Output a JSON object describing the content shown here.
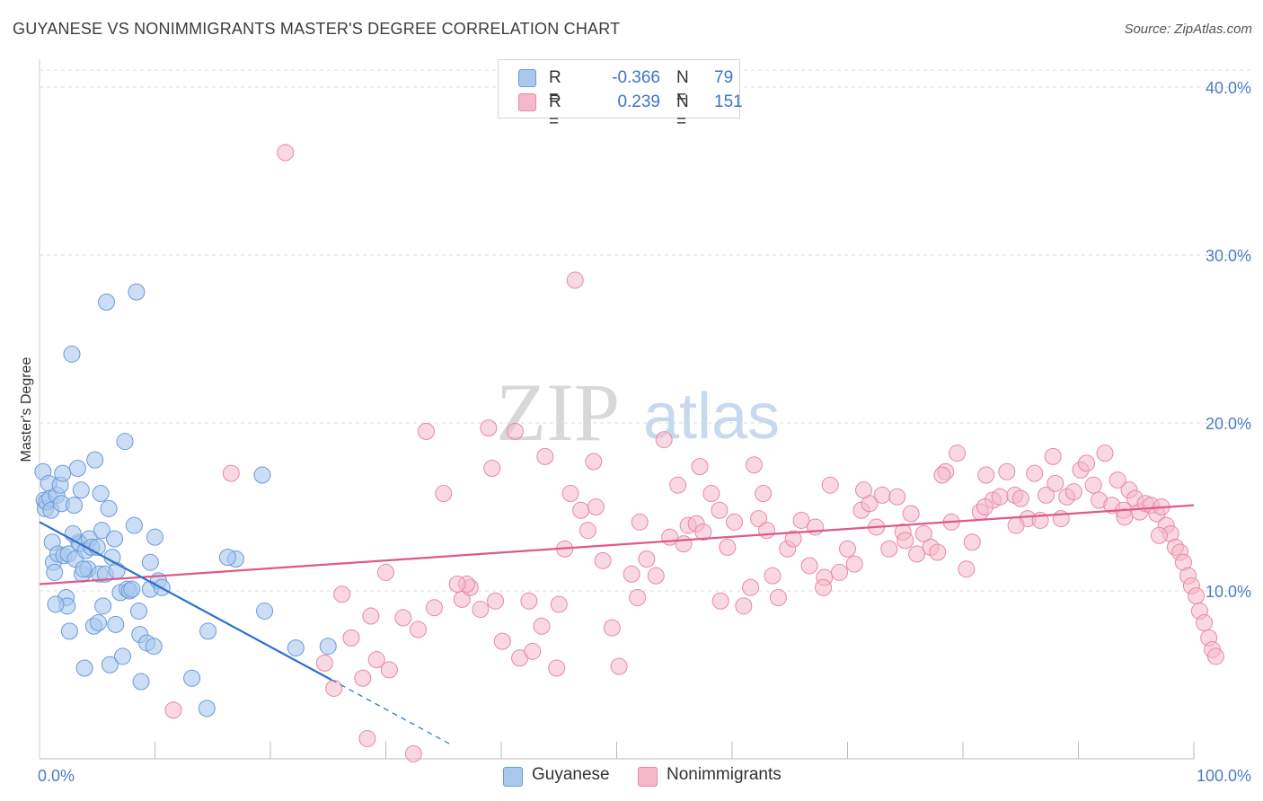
{
  "header": {
    "title": "GUYANESE VS NONIMMIGRANTS MASTER'S DEGREE CORRELATION CHART",
    "source": "Source: ZipAtlas.com"
  },
  "watermark": {
    "part1": "ZIP",
    "part2": "atlas"
  },
  "legend": {
    "rows": [
      {
        "r_label": "R =",
        "r_value": "-0.366",
        "n_label": "N =",
        "n_value": "79",
        "color": "#a9c8ee"
      },
      {
        "r_label": "R =",
        "r_value": "0.239",
        "n_label": "N =",
        "n_value": "151",
        "color": "#f6b8cb"
      }
    ]
  },
  "bottom_legend": [
    {
      "label": "Guyanese",
      "color": "#a9c8ee"
    },
    {
      "label": "Nonimmigrants",
      "color": "#f6b8cb"
    }
  ],
  "chart_data": {
    "type": "scatter",
    "ylabel": "Master's Degree",
    "xlim": [
      0,
      100
    ],
    "ylim": [
      0,
      40
    ],
    "x_tick_labels": [
      "0.0%",
      "100.0%"
    ],
    "y_ticks": [
      10,
      20,
      30,
      40
    ],
    "y_tick_labels": [
      "10.0%",
      "20.0%",
      "30.0%",
      "40.0%"
    ],
    "grid": true,
    "legend_position": "top-center",
    "colors": {
      "guyanese_fill": "#a9c8ee",
      "guyanese_stroke": "#6d9ad6",
      "guyanese_line": "#2e6fd0",
      "nonimm_fill": "#f6b8cb",
      "nonimm_stroke": "#e48aa8",
      "nonimm_line": "#e0588a"
    },
    "series": [
      {
        "name": "Guyanese",
        "trend": {
          "x": [
            0,
            25.3
          ],
          "y": [
            14.1,
            4.7
          ],
          "dash_to": [
            35.5,
            0.9
          ]
        },
        "points": [
          [
            0.3,
            17.1
          ],
          [
            0.4,
            15.4
          ],
          [
            0.5,
            14.9
          ],
          [
            0.6,
            15.3
          ],
          [
            0.8,
            16.4
          ],
          [
            0.9,
            15.5
          ],
          [
            1.0,
            14.8
          ],
          [
            1.1,
            12.9
          ],
          [
            1.2,
            11.7
          ],
          [
            1.3,
            11.1
          ],
          [
            1.5,
            15.7
          ],
          [
            1.6,
            12.2
          ],
          [
            1.8,
            16.3
          ],
          [
            1.9,
            15.2
          ],
          [
            2.0,
            17.0
          ],
          [
            2.1,
            12.1
          ],
          [
            2.3,
            9.6
          ],
          [
            2.4,
            9.1
          ],
          [
            2.5,
            12.2
          ],
          [
            2.6,
            7.6
          ],
          [
            2.8,
            24.1
          ],
          [
            3.0,
            15.1
          ],
          [
            3.1,
            11.9
          ],
          [
            3.3,
            17.3
          ],
          [
            3.4,
            12.9
          ],
          [
            3.5,
            12.8
          ],
          [
            3.6,
            16.0
          ],
          [
            3.7,
            11.0
          ],
          [
            3.9,
            5.4
          ],
          [
            4.0,
            12.4
          ],
          [
            4.2,
            11.3
          ],
          [
            4.3,
            13.1
          ],
          [
            4.5,
            12.6
          ],
          [
            4.7,
            7.9
          ],
          [
            4.8,
            17.8
          ],
          [
            5.0,
            12.6
          ],
          [
            5.1,
            8.1
          ],
          [
            5.2,
            11.0
          ],
          [
            5.4,
            13.6
          ],
          [
            5.5,
            9.1
          ],
          [
            5.7,
            11.0
          ],
          [
            5.8,
            27.2
          ],
          [
            6.0,
            14.9
          ],
          [
            6.1,
            5.6
          ],
          [
            6.3,
            12.0
          ],
          [
            6.5,
            13.1
          ],
          [
            6.7,
            11.2
          ],
          [
            7.0,
            9.9
          ],
          [
            7.2,
            6.1
          ],
          [
            7.4,
            18.9
          ],
          [
            7.6,
            10.1
          ],
          [
            7.8,
            10.0
          ],
          [
            8.0,
            10.1
          ],
          [
            8.2,
            13.9
          ],
          [
            8.4,
            27.8
          ],
          [
            8.6,
            8.8
          ],
          [
            8.7,
            7.4
          ],
          [
            8.8,
            4.6
          ],
          [
            9.3,
            6.9
          ],
          [
            9.6,
            10.1
          ],
          [
            9.9,
            6.7
          ],
          [
            10.3,
            10.6
          ],
          [
            10.6,
            10.2
          ],
          [
            13.2,
            4.8
          ],
          [
            14.5,
            3.0
          ],
          [
            14.6,
            7.6
          ],
          [
            17.0,
            11.9
          ],
          [
            16.3,
            12.0
          ],
          [
            19.5,
            8.8
          ],
          [
            19.3,
            16.9
          ],
          [
            25.0,
            6.7
          ],
          [
            22.2,
            6.6
          ],
          [
            9.6,
            11.7
          ],
          [
            3.8,
            11.3
          ],
          [
            6.6,
            8.0
          ],
          [
            1.4,
            9.2
          ],
          [
            10.0,
            13.2
          ],
          [
            2.9,
            13.4
          ],
          [
            5.3,
            15.8
          ]
        ]
      },
      {
        "name": "Nonimmigrants",
        "trend": {
          "x": [
            0,
            100
          ],
          "y": [
            10.4,
            15.1
          ]
        },
        "points": [
          [
            21.3,
            36.1
          ],
          [
            46.4,
            28.5
          ],
          [
            11.6,
            2.9
          ],
          [
            28.4,
            1.2
          ],
          [
            32.4,
            0.3
          ],
          [
            24.7,
            5.7
          ],
          [
            25.5,
            4.2
          ],
          [
            28.0,
            4.8
          ],
          [
            29.2,
            5.9
          ],
          [
            30.3,
            5.3
          ],
          [
            26.2,
            9.8
          ],
          [
            27.0,
            7.2
          ],
          [
            28.7,
            8.5
          ],
          [
            30.0,
            11.1
          ],
          [
            31.5,
            8.4
          ],
          [
            32.8,
            7.7
          ],
          [
            34.2,
            9.0
          ],
          [
            35.0,
            15.8
          ],
          [
            36.6,
            9.5
          ],
          [
            37.3,
            10.2
          ],
          [
            38.2,
            8.9
          ],
          [
            39.5,
            9.4
          ],
          [
            40.1,
            7.0
          ],
          [
            41.6,
            6.0
          ],
          [
            42.4,
            9.4
          ],
          [
            43.5,
            7.9
          ],
          [
            44.8,
            5.4
          ],
          [
            45.0,
            9.2
          ],
          [
            46.0,
            15.8
          ],
          [
            46.9,
            14.8
          ],
          [
            47.5,
            13.6
          ],
          [
            48.2,
            15.0
          ],
          [
            48.8,
            11.8
          ],
          [
            49.6,
            7.8
          ],
          [
            50.2,
            5.5
          ],
          [
            51.3,
            11.0
          ],
          [
            52.0,
            14.1
          ],
          [
            52.6,
            11.9
          ],
          [
            53.4,
            10.9
          ],
          [
            54.6,
            13.2
          ],
          [
            55.3,
            16.3
          ],
          [
            55.8,
            12.8
          ],
          [
            56.2,
            13.9
          ],
          [
            56.9,
            14.0
          ],
          [
            57.5,
            13.5
          ],
          [
            58.2,
            15.8
          ],
          [
            58.9,
            14.8
          ],
          [
            59.6,
            12.6
          ],
          [
            60.2,
            14.1
          ],
          [
            61.0,
            9.1
          ],
          [
            61.6,
            10.2
          ],
          [
            62.3,
            14.3
          ],
          [
            63.0,
            13.6
          ],
          [
            63.5,
            10.9
          ],
          [
            64.0,
            9.6
          ],
          [
            64.8,
            12.5
          ],
          [
            65.3,
            13.1
          ],
          [
            66.0,
            14.2
          ],
          [
            66.7,
            11.5
          ],
          [
            67.2,
            13.8
          ],
          [
            68.0,
            10.8
          ],
          [
            68.5,
            16.3
          ],
          [
            69.3,
            11.1
          ],
          [
            70.0,
            12.5
          ],
          [
            70.6,
            11.6
          ],
          [
            71.2,
            14.8
          ],
          [
            71.9,
            15.2
          ],
          [
            72.5,
            13.8
          ],
          [
            73.0,
            15.7
          ],
          [
            73.6,
            12.5
          ],
          [
            74.3,
            15.6
          ],
          [
            74.8,
            13.5
          ],
          [
            75.5,
            14.6
          ],
          [
            76.0,
            12.2
          ],
          [
            76.6,
            13.4
          ],
          [
            77.2,
            12.6
          ],
          [
            77.8,
            12.3
          ],
          [
            78.5,
            17.1
          ],
          [
            79.0,
            14.1
          ],
          [
            79.5,
            18.2
          ],
          [
            80.3,
            11.3
          ],
          [
            80.8,
            12.9
          ],
          [
            81.5,
            14.7
          ],
          [
            82.0,
            16.9
          ],
          [
            82.6,
            15.4
          ],
          [
            83.2,
            15.6
          ],
          [
            83.8,
            17.1
          ],
          [
            84.5,
            15.7
          ],
          [
            85.0,
            15.5
          ],
          [
            85.6,
            14.3
          ],
          [
            86.2,
            17.0
          ],
          [
            86.7,
            14.2
          ],
          [
            87.2,
            15.7
          ],
          [
            87.8,
            18.0
          ],
          [
            88.5,
            14.3
          ],
          [
            89.0,
            15.6
          ],
          [
            89.6,
            15.9
          ],
          [
            90.2,
            17.2
          ],
          [
            90.7,
            17.6
          ],
          [
            91.3,
            16.3
          ],
          [
            91.8,
            15.4
          ],
          [
            92.3,
            18.2
          ],
          [
            92.9,
            15.1
          ],
          [
            93.4,
            16.6
          ],
          [
            93.9,
            14.8
          ],
          [
            94.4,
            16.0
          ],
          [
            94.9,
            15.5
          ],
          [
            95.3,
            14.7
          ],
          [
            95.8,
            15.2
          ],
          [
            96.3,
            15.1
          ],
          [
            96.8,
            14.6
          ],
          [
            97.2,
            15.0
          ],
          [
            97.6,
            13.9
          ],
          [
            98.0,
            13.4
          ],
          [
            98.4,
            12.6
          ],
          [
            98.8,
            12.3
          ],
          [
            99.1,
            11.7
          ],
          [
            99.5,
            10.9
          ],
          [
            99.8,
            10.3
          ],
          [
            100.2,
            9.7
          ],
          [
            100.5,
            8.8
          ],
          [
            100.9,
            8.1
          ],
          [
            101.3,
            7.2
          ],
          [
            101.6,
            6.5
          ],
          [
            101.9,
            6.1
          ],
          [
            37.0,
            10.4
          ],
          [
            33.5,
            19.5
          ],
          [
            38.9,
            19.7
          ],
          [
            41.2,
            19.5
          ],
          [
            43.8,
            18.0
          ],
          [
            39.2,
            17.3
          ],
          [
            48.0,
            17.7
          ],
          [
            54.1,
            19.0
          ],
          [
            57.2,
            17.4
          ],
          [
            61.9,
            17.5
          ],
          [
            71.4,
            16.0
          ],
          [
            78.2,
            16.9
          ],
          [
            84.6,
            13.9
          ],
          [
            62.7,
            15.8
          ],
          [
            45.5,
            12.5
          ],
          [
            36.2,
            10.4
          ],
          [
            42.7,
            6.4
          ],
          [
            51.8,
            9.6
          ],
          [
            59.0,
            9.4
          ],
          [
            67.9,
            10.2
          ],
          [
            75.0,
            13.0
          ],
          [
            81.9,
            15.0
          ],
          [
            88.0,
            16.4
          ],
          [
            94.0,
            14.4
          ],
          [
            97.0,
            13.3
          ],
          [
            16.6,
            17.0
          ]
        ]
      }
    ]
  }
}
